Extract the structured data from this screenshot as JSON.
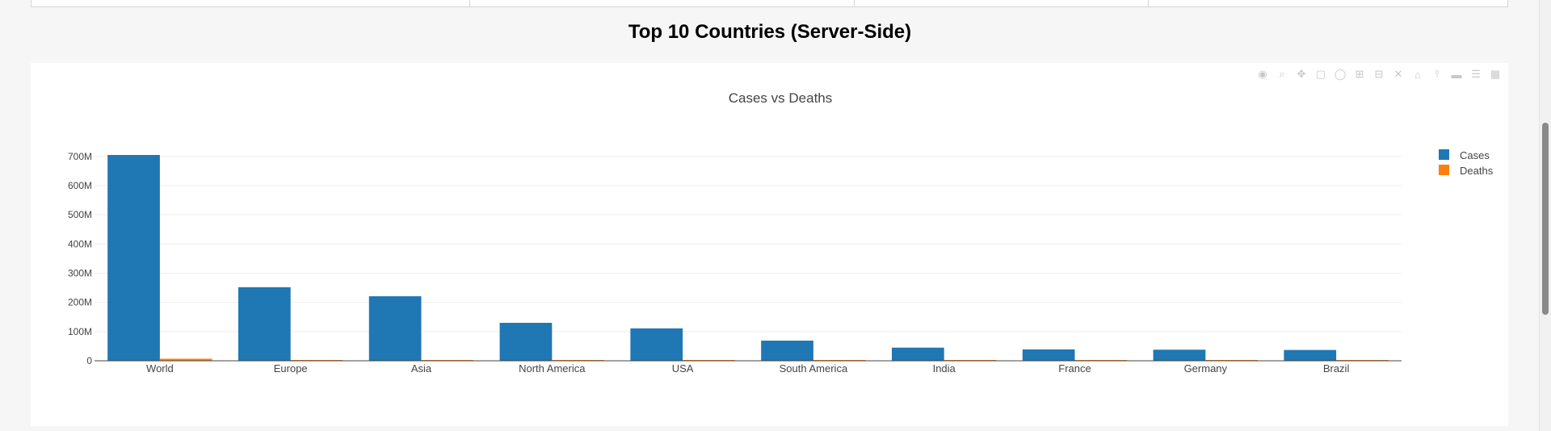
{
  "section_title": "Top 10 Countries (Server-Side)",
  "colors": {
    "cases": "#1f77b4",
    "deaths": "#ff7f0e",
    "grid": "#eeeeee",
    "axis_text": "#444444"
  },
  "modebar_icons": [
    "camera-icon",
    "zoom-icon",
    "pan-icon",
    "box-select-icon",
    "lasso-icon",
    "zoom-in-icon",
    "zoom-out-icon",
    "autoscale-icon",
    "reset-axes-icon",
    "spike-lines-icon",
    "hover-closest-icon",
    "hover-compare-icon",
    "plotly-logo-icon"
  ],
  "chart_data": {
    "type": "bar",
    "title": "Cases vs Deaths",
    "xlabel": "",
    "ylabel": "",
    "categories": [
      "World",
      "Europe",
      "Asia",
      "North America",
      "USA",
      "South America",
      "India",
      "France",
      "Germany",
      "Brazil"
    ],
    "series": [
      {
        "name": "Cases",
        "values": [
          705000000,
          252000000,
          221000000,
          130000000,
          111000000,
          69000000,
          45000000,
          39000000,
          38000000,
          37000000
        ]
      },
      {
        "name": "Deaths",
        "values": [
          7000000,
          2100000,
          1600000,
          1600000,
          1200000,
          1400000,
          530000,
          170000,
          180000,
          700000
        ]
      }
    ],
    "ylim": [
      0,
      705000000
    ],
    "yticks": [
      0,
      100000000,
      200000000,
      300000000,
      400000000,
      500000000,
      600000000,
      700000000
    ],
    "ytick_labels": [
      "0",
      "100M",
      "200M",
      "300M",
      "400M",
      "500M",
      "600M",
      "700M"
    ],
    "grid": true,
    "legend_position": "top-right"
  }
}
